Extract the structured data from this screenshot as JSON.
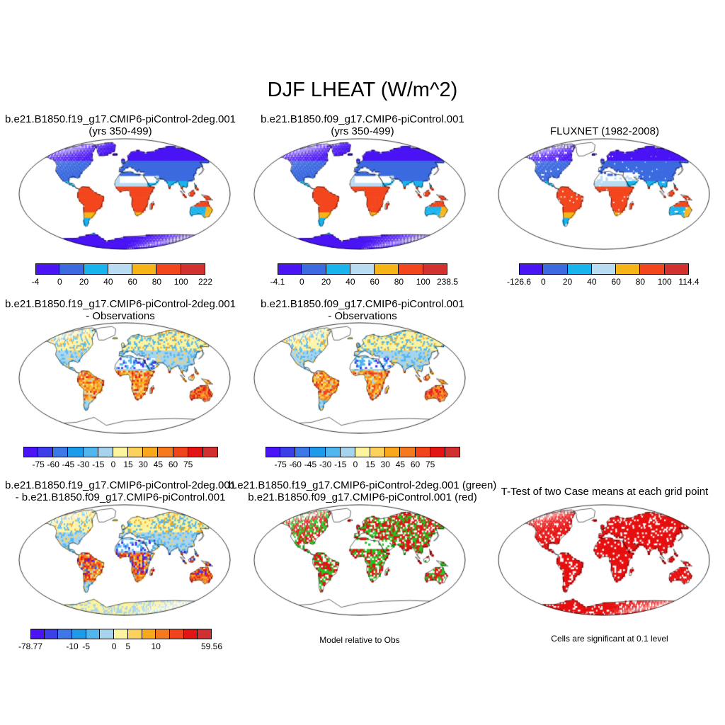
{
  "title": "DJF LHEAT (W/m^2)",
  "panels": [
    {
      "id": "p1",
      "title1": "b.e21.B1850.f19_g17.CMIP6-piControl-2deg.001",
      "title2": "(yrs 350-499)",
      "palette": "abs",
      "missing": "none",
      "antarctica": true
    },
    {
      "id": "p2",
      "title1": "b.e21.B1850.f09_g17.CMIP6-piControl.001",
      "title2": "(yrs 350-499)",
      "palette": "abs",
      "missing": "none",
      "antarctica": true
    },
    {
      "id": "p3",
      "title1": "FLUXNET (1982-2008)",
      "title2": "",
      "palette": "abs",
      "missing": "gaps",
      "antarctica": false
    },
    {
      "id": "p4",
      "title1": "b.e21.B1850.f19_g17.CMIP6-piControl-2deg.001",
      "title2": "- Observations",
      "palette": "diff",
      "antarctica": false
    },
    {
      "id": "p5",
      "title1": "b.e21.B1850.f09_g17.CMIP6-piControl.001",
      "title2": "- Observations",
      "palette": "diff",
      "antarctica": false
    },
    {
      "id": "p6",
      "title1": "b.e21.B1850.f19_g17.CMIP6-piControl-2deg.001",
      "title2": "- b.e21.B1850.f09_g17.CMIP6-piControl.001",
      "palette": "diff2",
      "antarctica": true
    },
    {
      "id": "p7",
      "title1": "b.e21.B1850.f19_g17.CMIP6-piControl-2deg.001 (green)",
      "title2": "b.e21.B1850.f09_g17.CMIP6-piControl.001 (red)",
      "palette": "gr",
      "antarctica": false
    },
    {
      "id": "p8",
      "title1": "T-Test of two Case means at each grid point",
      "title2": "",
      "palette": "red",
      "antarctica": true
    }
  ],
  "colorbars": [
    {
      "id": "cb1",
      "colors": [
        "#4a14f5",
        "#3c6ae0",
        "#19b4ee",
        "#b8dcf2",
        "#f7b417",
        "#f4461d",
        "#d33030"
      ],
      "ticks": [
        "-4",
        "0",
        "20",
        "40",
        "60",
        "80",
        "100",
        "222"
      ]
    },
    {
      "id": "cb2",
      "colors": [
        "#4a14f5",
        "#3c6ae0",
        "#19b4ee",
        "#b8dcf2",
        "#f7b417",
        "#f4461d",
        "#d33030"
      ],
      "ticks": [
        "-4.1",
        "0",
        "20",
        "40",
        "60",
        "80",
        "100",
        "238.5"
      ]
    },
    {
      "id": "cb3",
      "colors": [
        "#4a14f5",
        "#3c6ae0",
        "#19b4ee",
        "#b8dcf2",
        "#f7b417",
        "#f4461d",
        "#d33030"
      ],
      "ticks": [
        "-126.6",
        "0",
        "20",
        "40",
        "60",
        "80",
        "100",
        "114.4"
      ]
    },
    {
      "id": "cb4",
      "colors": [
        "#4a14f5",
        "#3c3fe8",
        "#3c78e6",
        "#1e9be8",
        "#52b6ee",
        "#a6d4ef",
        "#fdf4a0",
        "#fcd25c",
        "#f8a81d",
        "#f47a1d",
        "#f0441d",
        "#e21414",
        "#d03030"
      ],
      "ticks": [
        "-75",
        "-60",
        "-45",
        "-30",
        "-15",
        "0",
        "15",
        "30",
        "45",
        "60",
        "75"
      ]
    },
    {
      "id": "cb5",
      "colors": [
        "#4a14f5",
        "#3c3fe8",
        "#3c78e6",
        "#1e9be8",
        "#52b6ee",
        "#a6d4ef",
        "#fdf4a0",
        "#fcd25c",
        "#f8a81d",
        "#f47a1d",
        "#f0441d",
        "#e21414",
        "#d03030"
      ],
      "ticks": [
        "-75",
        "-60",
        "-45",
        "-30",
        "-15",
        "0",
        "15",
        "30",
        "45",
        "60",
        "75"
      ]
    },
    {
      "id": "cb6",
      "colors": [
        "#4a14f5",
        "#3c3fe8",
        "#3c78e6",
        "#1e9be8",
        "#52b6ee",
        "#a6d4ef",
        "#fdf4a0",
        "#fcd25c",
        "#f8a81d",
        "#f47a1d",
        "#f0441d",
        "#e21414",
        "#d03030"
      ],
      "ticks": [
        "-78.77",
        "-10",
        "-5",
        "0",
        "5",
        "10",
        "59.56"
      ]
    }
  ],
  "captions": {
    "p7": "Model relative to Obs",
    "p8": "Cells are significant at 0.1 level"
  }
}
